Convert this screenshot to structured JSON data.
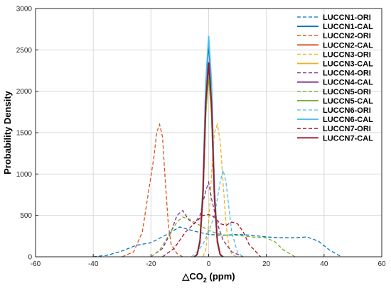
{
  "chart_data": {
    "type": "line",
    "title": "",
    "ylabel": "Probability Density",
    "xlabel_prefix": "△CO",
    "xlabel_sub": "2",
    "xlabel_suffix": " (ppm)",
    "xlim": [
      -60,
      60
    ],
    "ylim": [
      0,
      3000
    ],
    "xticks": [
      -60,
      -40,
      -20,
      0,
      20,
      40,
      60
    ],
    "yticks": [
      0,
      500,
      1000,
      1500,
      2000,
      2500,
      3000
    ],
    "grid": true,
    "legend_position": "top-right",
    "series": [
      {
        "name": "LUCCN1-ORI",
        "color": "#0072BD",
        "style": "dashed",
        "x": [
          -40,
          -35,
          -30,
          -25,
          -20,
          -15,
          -10,
          -5,
          0,
          5,
          10,
          15,
          20,
          25,
          30,
          34,
          38,
          42,
          46
        ],
        "y": [
          0,
          20,
          70,
          140,
          170,
          260,
          360,
          310,
          270,
          260,
          270,
          260,
          240,
          230,
          230,
          240,
          190,
          80,
          0
        ]
      },
      {
        "name": "LUCCN1-CAL",
        "color": "#0072BD",
        "style": "solid",
        "x": [
          -5,
          -4,
          -3,
          -2,
          -1,
          0,
          1,
          2,
          3,
          4,
          5
        ],
        "y": [
          0,
          30,
          200,
          800,
          2000,
          2600,
          2000,
          800,
          200,
          30,
          0
        ]
      },
      {
        "name": "LUCCN2-ORI",
        "color": "#D95319",
        "style": "dashed",
        "x": [
          -30,
          -26,
          -23,
          -21,
          -19,
          -18,
          -17,
          -16,
          -15,
          -14,
          -13,
          -11,
          -9
        ],
        "y": [
          0,
          60,
          300,
          750,
          1200,
          1500,
          1600,
          1450,
          900,
          400,
          150,
          40,
          0
        ]
      },
      {
        "name": "LUCCN2-CAL",
        "color": "#D95319",
        "style": "solid",
        "x": [
          -5,
          -4,
          -3,
          -2,
          -1,
          0,
          1,
          2,
          3,
          4,
          5
        ],
        "y": [
          0,
          25,
          180,
          720,
          1800,
          2300,
          1800,
          720,
          180,
          25,
          0
        ]
      },
      {
        "name": "LUCCN3-ORI",
        "color": "#EDB120",
        "style": "dashed",
        "x": [
          -2,
          -1,
          0,
          1,
          2,
          3,
          4,
          5,
          6,
          7,
          8,
          10
        ],
        "y": [
          0,
          80,
          400,
          1000,
          1500,
          1600,
          1400,
          900,
          400,
          120,
          30,
          0
        ]
      },
      {
        "name": "LUCCN3-CAL",
        "color": "#EDB120",
        "style": "solid",
        "x": [
          -5,
          -4,
          -3,
          -2,
          -1,
          0,
          1,
          2,
          3,
          4,
          5
        ],
        "y": [
          0,
          25,
          180,
          720,
          1760,
          2230,
          1760,
          720,
          180,
          25,
          0
        ]
      },
      {
        "name": "LUCCN4-ORI",
        "color": "#7E2F8E",
        "style": "dashed",
        "x": [
          -20,
          -16,
          -13,
          -11,
          -9,
          -7,
          -5,
          -3,
          -1,
          0,
          1,
          3,
          5,
          8,
          12
        ],
        "y": [
          0,
          100,
          300,
          500,
          560,
          450,
          400,
          500,
          800,
          900,
          700,
          400,
          200,
          60,
          0
        ]
      },
      {
        "name": "LUCCN4-CAL",
        "color": "#7E2F8E",
        "style": "solid",
        "x": [
          -5,
          -4,
          -3,
          -2,
          -1,
          0,
          1,
          2,
          3,
          4,
          5
        ],
        "y": [
          0,
          25,
          180,
          720,
          1780,
          2250,
          1780,
          720,
          180,
          25,
          0
        ]
      },
      {
        "name": "LUCCN5-ORI",
        "color": "#77AC30",
        "style": "dashed",
        "x": [
          -20,
          -17,
          -14,
          -11,
          -9,
          -7,
          -5,
          -3,
          0,
          3,
          6,
          10,
          15,
          20,
          23,
          26,
          30
        ],
        "y": [
          0,
          80,
          250,
          420,
          480,
          460,
          420,
          380,
          320,
          280,
          260,
          260,
          240,
          230,
          180,
          80,
          0
        ]
      },
      {
        "name": "LUCCN5-CAL",
        "color": "#77AC30",
        "style": "solid",
        "x": [
          -5,
          -4,
          -3,
          -2,
          -1,
          0,
          1,
          2,
          3,
          4,
          5
        ],
        "y": [
          0,
          25,
          170,
          700,
          1720,
          2200,
          1720,
          700,
          170,
          25,
          0
        ]
      },
      {
        "name": "LUCCN6-ORI",
        "color": "#4DBEEE",
        "style": "dashed",
        "x": [
          -6,
          -4,
          -2,
          0,
          2,
          3,
          4,
          5,
          6,
          7,
          8,
          10,
          12
        ],
        "y": [
          0,
          60,
          150,
          300,
          500,
          700,
          900,
          1050,
          900,
          600,
          300,
          50,
          0
        ]
      },
      {
        "name": "LUCCN6-CAL",
        "color": "#4DBEEE",
        "style": "solid",
        "x": [
          -5,
          -4,
          -3,
          -2,
          -1,
          0,
          1,
          2,
          3,
          4,
          5
        ],
        "y": [
          0,
          30,
          210,
          840,
          2100,
          2670,
          2100,
          840,
          210,
          30,
          0
        ]
      },
      {
        "name": "LUCCN7-ORI",
        "color": "#A2142F",
        "style": "dashed",
        "x": [
          -16,
          -12,
          -8,
          -5,
          -2,
          0,
          2,
          4,
          6,
          8,
          10,
          12,
          14,
          18
        ],
        "y": [
          0,
          100,
          300,
          400,
          500,
          510,
          480,
          400,
          380,
          420,
          400,
          300,
          150,
          0
        ]
      },
      {
        "name": "LUCCN7-CAL",
        "color": "#A2142F",
        "style": "solid",
        "x": [
          -5,
          -4,
          -3,
          -2,
          -1,
          0,
          1,
          2,
          3,
          4,
          5
        ],
        "y": [
          0,
          28,
          190,
          750,
          1860,
          2350,
          1860,
          750,
          190,
          28,
          0
        ]
      }
    ]
  }
}
